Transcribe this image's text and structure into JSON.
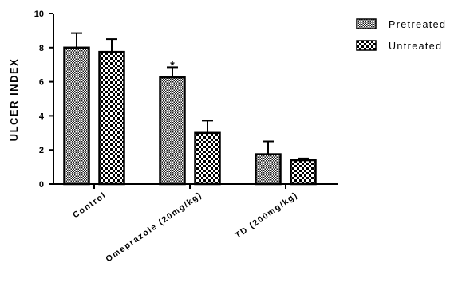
{
  "chart_data": {
    "type": "bar",
    "ylabel": "ULCER INDEX",
    "ylim": [
      0,
      10
    ],
    "yticks": [
      0,
      2,
      4,
      6,
      8,
      10
    ],
    "grid": false,
    "legend_position": "top-right",
    "categories": [
      "Control",
      "Omeprazole (20mg/kg)",
      "TD (200mg/kg)"
    ],
    "series": [
      {
        "name": "Pretreated",
        "values": [
          8.0,
          6.25,
          1.75
        ],
        "errors": [
          0.85,
          0.6,
          0.75
        ]
      },
      {
        "name": "Untreated",
        "values": [
          7.75,
          3.0,
          1.4
        ],
        "errors": [
          0.75,
          0.72,
          0.1
        ]
      }
    ],
    "annotations": [
      {
        "category": "Omeprazole (20mg/kg)",
        "series": "Pretreated",
        "text": "*"
      }
    ]
  }
}
